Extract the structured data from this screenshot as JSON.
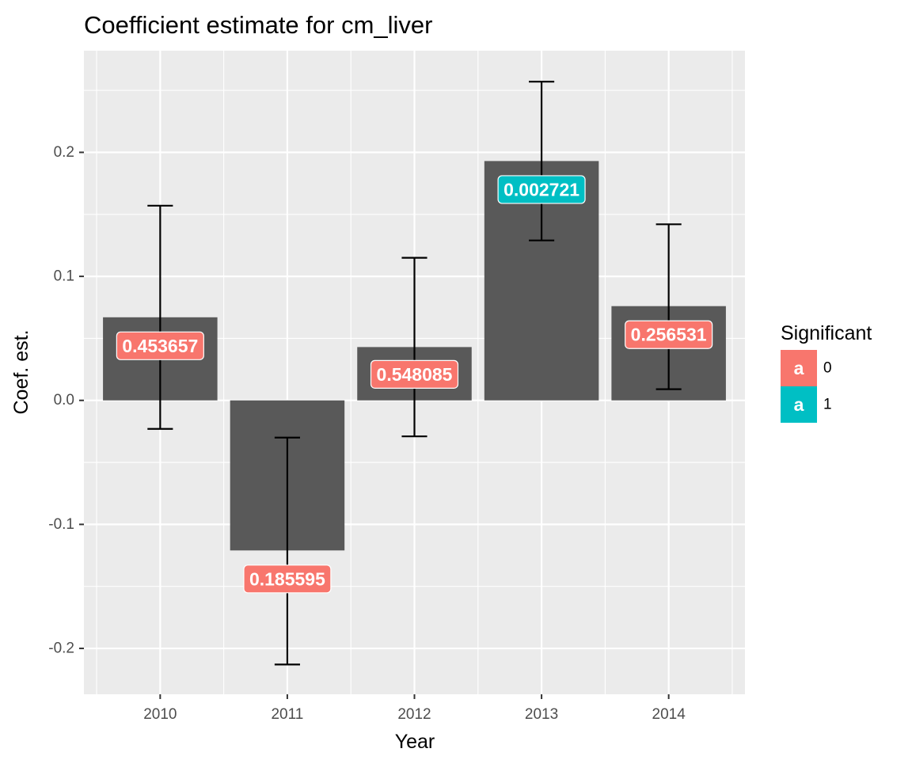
{
  "chart_data": {
    "type": "bar",
    "title": "Coefficient estimate for cm_liver",
    "xlabel": "Year",
    "ylabel": "Coef. est.",
    "categories": [
      "2010",
      "2011",
      "2012",
      "2013",
      "2014"
    ],
    "values": [
      0.067,
      -0.121,
      0.043,
      0.193,
      0.076
    ],
    "error_low": [
      -0.023,
      -0.213,
      -0.029,
      0.129,
      0.009
    ],
    "error_high": [
      0.157,
      -0.03,
      0.115,
      0.257,
      0.142
    ],
    "label_y": [
      0.044,
      -0.144,
      0.021,
      0.17,
      0.053
    ],
    "labels": [
      "0.453657",
      "0.185595",
      "0.548085",
      "0.002721",
      "0.256531"
    ],
    "significant": [
      "0",
      "0",
      "0",
      "1",
      "0"
    ],
    "ylim": [
      -0.237,
      0.282
    ],
    "y_ticks": [
      -0.2,
      -0.1,
      0.0,
      0.1,
      0.2
    ],
    "y_tick_labels": [
      "-0.2",
      "-0.1",
      "0.0",
      "0.1",
      "0.2"
    ],
    "grid": true,
    "legend": {
      "title": "Significant",
      "placement": "right",
      "key_glyph": "a",
      "entries": [
        {
          "label": "0",
          "color": "#F8766D"
        },
        {
          "label": "1",
          "color": "#00BFC4"
        }
      ]
    },
    "colors": {
      "bar": "#595959",
      "panel": "#EBEBEB",
      "grid": "#FFFFFF",
      "errorbar": "#000000"
    }
  }
}
